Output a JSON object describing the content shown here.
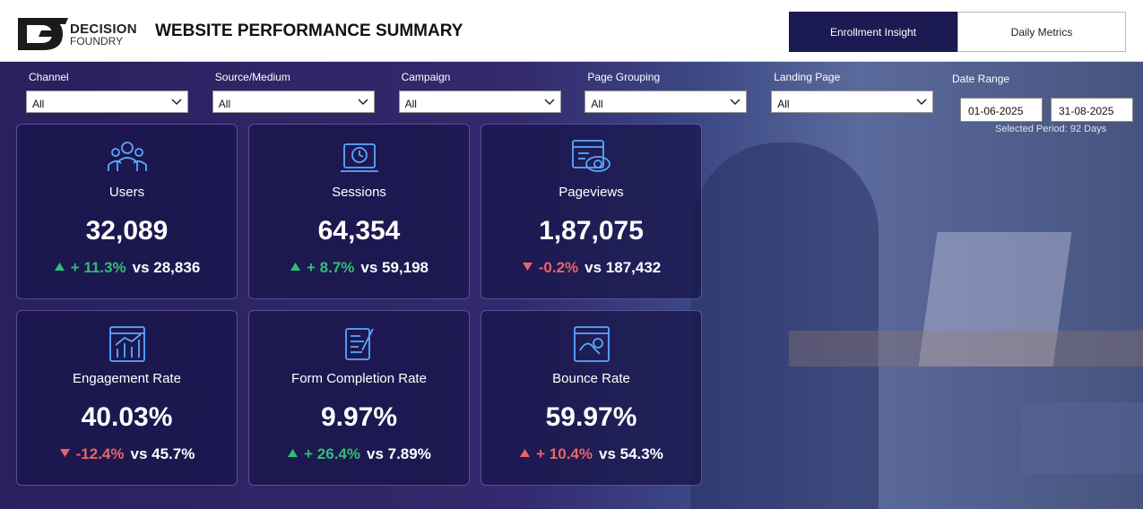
{
  "header": {
    "logo_top": "DECISION",
    "logo_bottom": "FOUNDRY",
    "title": "WEBSITE PERFORMANCE SUMMARY"
  },
  "tabs": [
    {
      "label": "Enrollment Insight",
      "active": true
    },
    {
      "label": "Daily Metrics",
      "active": false
    }
  ],
  "filters": [
    {
      "label": "Channel",
      "value": "All"
    },
    {
      "label": "Source/Medium",
      "value": "All"
    },
    {
      "label": "Campaign",
      "value": "All"
    },
    {
      "label": "Page Grouping",
      "value": "All"
    },
    {
      "label": "Landing Page",
      "value": "All"
    }
  ],
  "date_range": {
    "label": "Date Range",
    "start": "01-06-2025",
    "end": "31-08-2025",
    "period": "Selected Period: 92 Days"
  },
  "cards": [
    {
      "icon": "users",
      "label": "Users",
      "value": "32,089",
      "delta": "+ 11.3%",
      "compare": "vs 28,836",
      "arrow": "up",
      "color": "#2fbf74"
    },
    {
      "icon": "sessions",
      "label": "Sessions",
      "value": "64,354",
      "delta": "+ 8.7%",
      "compare": "vs 59,198",
      "arrow": "up",
      "color": "#2fbf74"
    },
    {
      "icon": "pageviews",
      "label": "Pageviews",
      "value": "1,87,075",
      "delta": "-0.2%",
      "compare": "vs 187,432",
      "arrow": "down",
      "color": "#e8646a"
    },
    {
      "icon": "engagement",
      "label": "Engagement Rate",
      "value": "40.03%",
      "delta": "-12.4%",
      "compare": "vs 45.7%",
      "arrow": "down",
      "color": "#e8646a"
    },
    {
      "icon": "form",
      "label": "Form Completion Rate",
      "value": "9.97%",
      "delta": "+ 26.4%",
      "compare": "vs 7.89%",
      "arrow": "up",
      "color": "#2fbf74"
    },
    {
      "icon": "bounce",
      "label": "Bounce Rate",
      "value": "59.97%",
      "delta": "+ 10.4%",
      "compare": "vs 54.3%",
      "arrow": "up",
      "color": "#e8646a"
    }
  ]
}
